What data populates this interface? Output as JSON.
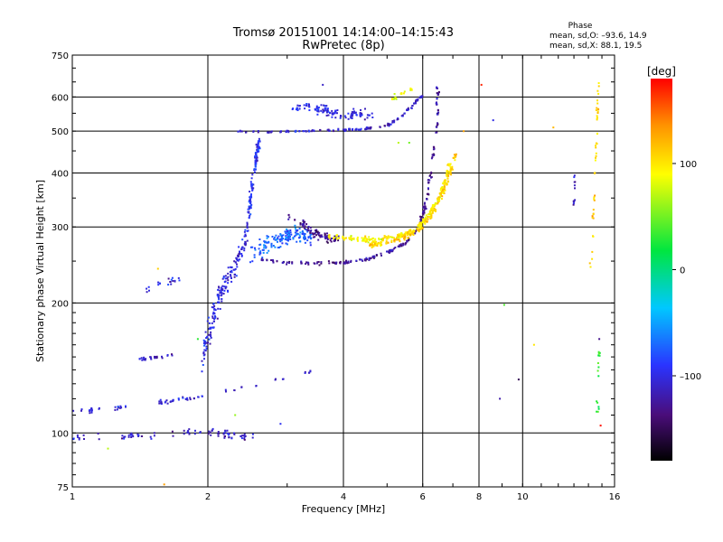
{
  "chart_data": {
    "type": "scatter",
    "title": "Tromsø 20151001 14:14:00–14:15:43",
    "subtitle": "RwPretec (8p)",
    "xlabel": "Frequency [MHz]",
    "ylabel": "Stationary phase Virtual Height [km]",
    "x_scale": "log",
    "y_scale": "log",
    "xlim": [
      1,
      16
    ],
    "ylim": [
      75,
      750
    ],
    "grid": true,
    "x_ticks": [
      1,
      2,
      4,
      6,
      8,
      10,
      16
    ],
    "x_tick_labels": [
      "1",
      "2",
      "4",
      "6",
      "8",
      "10",
      "16"
    ],
    "y_ticks": [
      75,
      100,
      200,
      300,
      400,
      500,
      600,
      750
    ],
    "y_tick_labels": [
      "75",
      "100",
      "200",
      "300",
      "400",
      "500",
      "600",
      "750"
    ],
    "phase_box": {
      "title": "Phase",
      "line_o": "mean, sd,O: –93.6, 14.9",
      "line_x": "mean, sd,X:  88.1, 19.5"
    },
    "colorbar": {
      "label": "[deg]",
      "range": [
        -180,
        180
      ],
      "ticks": [
        100,
        0,
        -100
      ],
      "tick_labels": [
        "100",
        "0",
        "–100"
      ]
    },
    "traces": [
      {
        "kind": "band",
        "points": [
          [
            1.0,
            97
          ],
          [
            1.3,
            98
          ],
          [
            1.7,
            100
          ],
          [
            2.0,
            101
          ],
          [
            2.2,
            99
          ],
          [
            2.6,
            97
          ]
        ],
        "spread": 3,
        "phase": -110,
        "density": 45
      },
      {
        "kind": "band",
        "points": [
          [
            1.0,
            112
          ],
          [
            1.25,
            114
          ],
          [
            1.6,
            118
          ],
          [
            1.9,
            121
          ],
          [
            2.3,
            126
          ],
          [
            2.8,
            132
          ],
          [
            3.5,
            140
          ]
        ],
        "spread": 2,
        "phase": -105,
        "density": 40
      },
      {
        "kind": "band",
        "points": [
          [
            1.4,
            148
          ],
          [
            1.55,
            150
          ],
          [
            1.7,
            152
          ]
        ],
        "spread": 2,
        "phase": -115,
        "density": 14
      },
      {
        "kind": "band",
        "points": [
          [
            1.45,
            214
          ],
          [
            1.6,
            222
          ],
          [
            1.75,
            228
          ]
        ],
        "spread": 6,
        "phase": -100,
        "density": 10
      },
      {
        "kind": "band",
        "points": [
          [
            1.95,
            150
          ],
          [
            2.05,
            185
          ],
          [
            2.15,
            215
          ],
          [
            2.3,
            240
          ],
          [
            2.45,
            290
          ]
        ],
        "spread": 20,
        "phase": -100,
        "density": 90
      },
      {
        "kind": "band",
        "points": [
          [
            2.45,
            300
          ],
          [
            2.5,
            360
          ],
          [
            2.55,
            420
          ],
          [
            2.6,
            470
          ]
        ],
        "spread": 25,
        "phase": -95,
        "density": 60
      },
      {
        "kind": "band",
        "points": [
          [
            2.5,
            262
          ],
          [
            2.8,
            275
          ],
          [
            3.1,
            290
          ],
          [
            3.4,
            285
          ]
        ],
        "spread": 18,
        "phase": -70,
        "density": 80
      },
      {
        "kind": "band",
        "points": [
          [
            2.6,
            252
          ],
          [
            3.0,
            248
          ],
          [
            3.5,
            247
          ],
          [
            4.0,
            248
          ],
          [
            4.5,
            252
          ],
          [
            5.0,
            262
          ],
          [
            5.5,
            275
          ],
          [
            5.9,
            300
          ],
          [
            6.1,
            340
          ],
          [
            6.3,
            420
          ],
          [
            6.45,
            520
          ],
          [
            6.5,
            640
          ]
        ],
        "spread": 3,
        "phase": -125,
        "density": 130
      },
      {
        "kind": "band",
        "points": [
          [
            3.0,
            320
          ],
          [
            3.3,
            300
          ],
          [
            3.6,
            285
          ],
          [
            3.9,
            280
          ]
        ],
        "spread": 10,
        "phase": -130,
        "density": 45
      },
      {
        "kind": "band",
        "points": [
          [
            3.7,
            285
          ],
          [
            4.2,
            282
          ],
          [
            4.8,
            280
          ],
          [
            5.3,
            285
          ],
          [
            5.8,
            296
          ],
          [
            6.2,
            320
          ],
          [
            6.6,
            360
          ],
          [
            6.9,
            420
          ]
        ],
        "spread": 6,
        "phase": 95,
        "density": 130
      },
      {
        "kind": "band",
        "points": [
          [
            4.5,
            272
          ],
          [
            5.0,
            276
          ],
          [
            5.5,
            285
          ],
          [
            6.0,
            300
          ],
          [
            6.4,
            330
          ],
          [
            6.8,
            380
          ],
          [
            7.1,
            440
          ]
        ],
        "spread": 6,
        "phase": 110,
        "density": 90
      },
      {
        "kind": "band",
        "points": [
          [
            2.3,
            500
          ],
          [
            2.8,
            498
          ],
          [
            3.3,
            500
          ],
          [
            3.8,
            502
          ],
          [
            4.4,
            505
          ],
          [
            5.0,
            515
          ],
          [
            5.4,
            540
          ],
          [
            5.7,
            575
          ],
          [
            6.0,
            605
          ]
        ],
        "spread": 5,
        "phase": -110,
        "density": 80
      },
      {
        "kind": "band",
        "points": [
          [
            3.05,
            555
          ],
          [
            3.3,
            575
          ],
          [
            3.6,
            560
          ],
          [
            3.9,
            545
          ],
          [
            4.3,
            550
          ],
          [
            4.7,
            545
          ]
        ],
        "spread": 22,
        "phase": -100,
        "density": 60
      },
      {
        "kind": "band",
        "points": [
          [
            5.1,
            590
          ],
          [
            5.4,
            610
          ],
          [
            5.7,
            630
          ]
        ],
        "spread": 10,
        "phase": 90,
        "density": 10
      },
      {
        "kind": "band",
        "points": [
          [
            14.2,
            230
          ],
          [
            14.4,
            350
          ],
          [
            14.6,
            500
          ],
          [
            14.8,
            650
          ]
        ],
        "spread": 15,
        "phase": 110,
        "density": 22
      },
      {
        "kind": "band",
        "points": [
          [
            13.0,
            330
          ],
          [
            13.0,
            400
          ]
        ],
        "spread": 10,
        "phase": -120,
        "density": 6
      },
      {
        "kind": "band",
        "points": [
          [
            14.6,
            105
          ],
          [
            14.7,
            130
          ],
          [
            14.8,
            160
          ]
        ],
        "spread": 6,
        "phase": 30,
        "density": 8
      }
    ],
    "scattered_points": [
      [
        8.1,
        640,
        170
      ],
      [
        8.9,
        120,
        -120
      ],
      [
        9.1,
        198,
        40
      ],
      [
        9.8,
        133,
        -150
      ],
      [
        10.6,
        160,
        100
      ],
      [
        11.7,
        510,
        120
      ],
      [
        8.6,
        530,
        -100
      ],
      [
        1.6,
        76,
        130
      ],
      [
        1.55,
        240,
        110
      ],
      [
        1.9,
        165,
        30
      ],
      [
        2.3,
        110,
        60
      ],
      [
        1.2,
        92,
        70
      ],
      [
        2.9,
        105,
        -95
      ],
      [
        3.6,
        640,
        -110
      ],
      [
        7.4,
        500,
        130
      ],
      [
        14.9,
        104,
        175
      ],
      [
        14.8,
        165,
        -130
      ],
      [
        5.6,
        470,
        50
      ],
      [
        5.3,
        470,
        70
      ]
    ]
  }
}
